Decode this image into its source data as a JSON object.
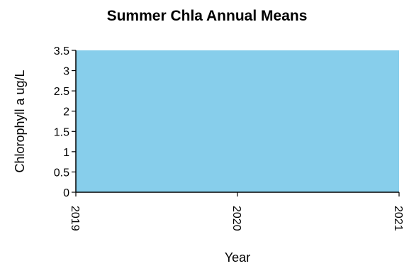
{
  "chart_data": {
    "type": "area",
    "title": "Summer Chla Annual Means",
    "xlabel": "Year",
    "ylabel": "Chlorophyll a ug/L",
    "x": [
      "2019",
      "2020",
      "2021"
    ],
    "series": [
      {
        "values": [
          3.5,
          3.5,
          3.5
        ]
      }
    ],
    "ylim": [
      0,
      3.5
    ],
    "yticks": [
      "0",
      "0.5",
      "1",
      "1.5",
      "2",
      "2.5",
      "3",
      "3.5"
    ],
    "grid": false,
    "fill_color": "#87ceeb",
    "axis_color": "#000000"
  }
}
